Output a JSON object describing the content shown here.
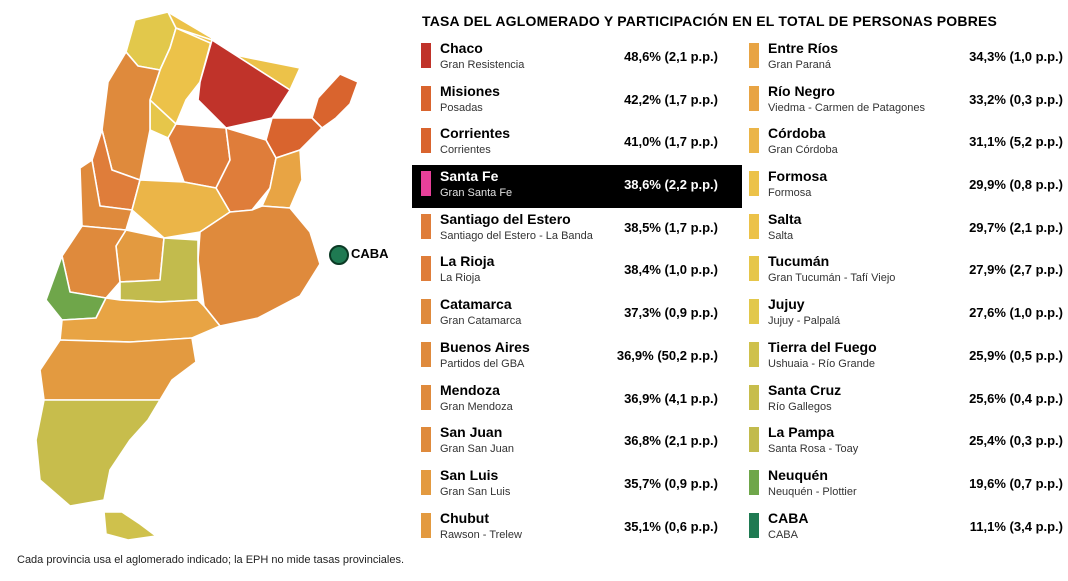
{
  "title": "TASA DEL AGLOMERADO Y PARTICIPACIÓN EN EL TOTAL DE PERSONAS POBRES",
  "map_label_caba": "CABA",
  "footnote": "Cada provincia usa el aglomerado indicado; la EPH no mide tasas provinciales.",
  "colors": {
    "red": "#c0332a",
    "dark_orange": "#d9642e",
    "orange": "#df8a3c",
    "light_orange": "#e8a444",
    "yellow": "#ecc249",
    "olive": "#c7bd4c",
    "green": "#6fa64a",
    "dark_green": "#1f7a52",
    "highlight_pink": "#e8409a"
  },
  "left_column": [
    {
      "province": "Chaco",
      "agglomerate": "Gran Resistencia",
      "value": "48,6% (2,1 p.p.)",
      "color": "#c0332a"
    },
    {
      "province": "Misiones",
      "agglomerate": "Posadas",
      "value": "42,2% (1,7 p.p.)",
      "color": "#d9642e"
    },
    {
      "province": "Corrientes",
      "agglomerate": "Corrientes",
      "value": "41,0% (1,7 p.p.)",
      "color": "#d9642e"
    },
    {
      "province": "Santa Fe",
      "agglomerate": "Gran Santa Fe",
      "value": "38,6% (2,2 p.p.)",
      "color": "#e8409a",
      "highlight": true
    },
    {
      "province": "Santiago del Estero",
      "agglomerate": "Santiago del Estero - La Banda",
      "value": "38,5% (1,7 p.p.)",
      "color": "#df7d3a"
    },
    {
      "province": "La Rioja",
      "agglomerate": "La Rioja",
      "value": "38,4% (1,0 p.p.)",
      "color": "#df7d3a"
    },
    {
      "province": "Catamarca",
      "agglomerate": "Gran Catamarca",
      "value": "37,3% (0,9 p.p.)",
      "color": "#df8a3c"
    },
    {
      "province": "Buenos Aires",
      "agglomerate": "Partidos del GBA",
      "value": "36,9% (50,2 p.p.)",
      "color": "#df8a3c"
    },
    {
      "province": "Mendoza",
      "agglomerate": "Gran Mendoza",
      "value": "36,9% (4,1 p.p.)",
      "color": "#df8a3c"
    },
    {
      "province": "San Juan",
      "agglomerate": "Gran San Juan",
      "value": "36,8% (2,1 p.p.)",
      "color": "#df8a3c"
    },
    {
      "province": "San Luis",
      "agglomerate": "Gran San Luis",
      "value": "35,7% (0,9 p.p.)",
      "color": "#e39a40"
    },
    {
      "province": "Chubut",
      "agglomerate": "Rawson - Trelew",
      "value": "35,1% (0,6 p.p.)",
      "color": "#e39a40"
    }
  ],
  "right_column": [
    {
      "province": "Entre Ríos",
      "agglomerate": "Gran Paraná",
      "value": "34,3% (1,0 p.p.)",
      "color": "#e8a444"
    },
    {
      "province": "Río Negro",
      "agglomerate": "Viedma - Carmen de Patagones",
      "value": "33,2% (0,3 p.p.)",
      "color": "#e8a444"
    },
    {
      "province": "Córdoba",
      "agglomerate": "Gran Córdoba",
      "value": "31,1% (5,2 p.p.)",
      "color": "#ebb548"
    },
    {
      "province": "Formosa",
      "agglomerate": "Formosa",
      "value": "29,9% (0,8 p.p.)",
      "color": "#ecc249"
    },
    {
      "province": "Salta",
      "agglomerate": "Salta",
      "value": "29,7% (2,1 p.p.)",
      "color": "#ecc249"
    },
    {
      "province": "Tucumán",
      "agglomerate": "Gran Tucumán - Tafí Viejo",
      "value": "27,9% (2,7 p.p.)",
      "color": "#e6c64a"
    },
    {
      "province": "Jujuy",
      "agglomerate": "Jujuy - Palpalá",
      "value": "27,6% (1,0 p.p.)",
      "color": "#e2c84b"
    },
    {
      "province": "Tierra del Fuego",
      "agglomerate": "Ushuaia - Río Grande",
      "value": "25,9% (0,5 p.p.)",
      "color": "#cfc14c"
    },
    {
      "province": "Santa Cruz",
      "agglomerate": "Río Gallegos",
      "value": "25,6% (0,4 p.p.)",
      "color": "#c7bd4c"
    },
    {
      "province": "La Pampa",
      "agglomerate": "Santa Rosa - Toay",
      "value": "25,4% (0,3 p.p.)",
      "color": "#c2bb4d"
    },
    {
      "province": "Neuquén",
      "agglomerate": "Neuquén - Plottier",
      "value": "19,6% (0,7 p.p.)",
      "color": "#6fa64a"
    },
    {
      "province": "CABA",
      "agglomerate": "CABA",
      "value": "11,1% (3,4 p.p.)",
      "color": "#1f7a52"
    }
  ]
}
